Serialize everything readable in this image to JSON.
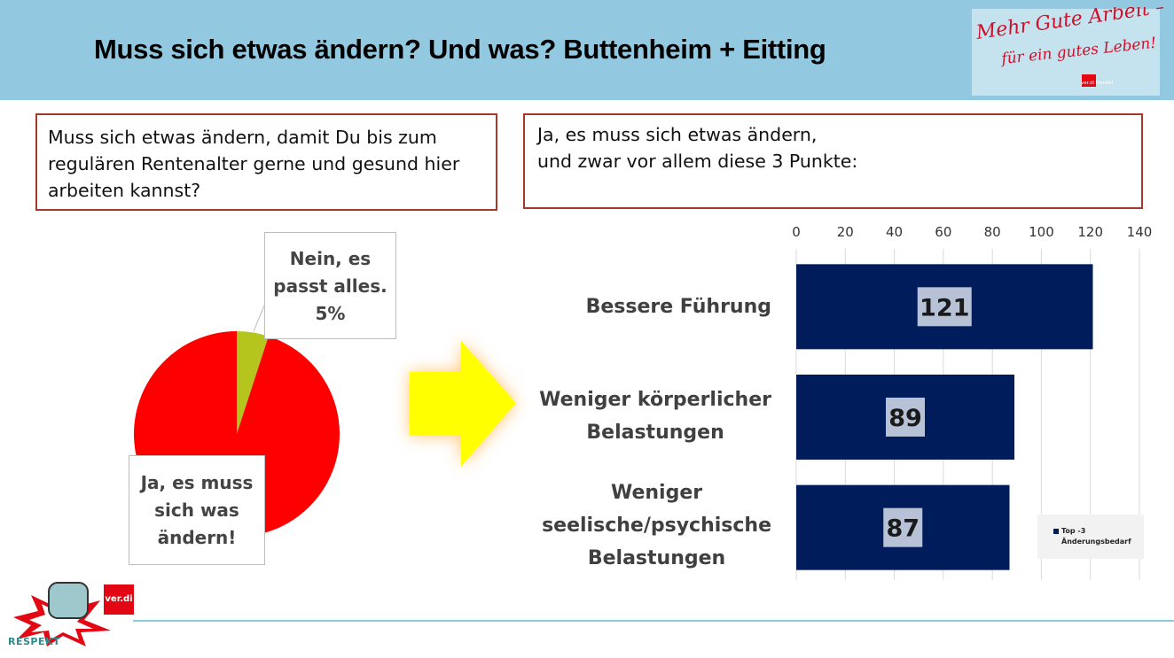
{
  "slide": {
    "title": "Muss sich etwas ändern? Und was? Buttenheim + Eitting",
    "question_lines": [
      "Muss sich etwas ändern, damit Du bis zum",
      "regulären Rentenalter gerne und gesund hier",
      "arbeiten kannst?"
    ],
    "answer_lines": [
      "Ja, es muss sich etwas ändern,",
      "und zwar vor allem diese 3 Punkte:"
    ],
    "logo_top": {
      "line1": "Mehr Gute Arbeit –",
      "line2": "für ein gutes Leben!",
      "badge": "ver.di Handel"
    },
    "logo_bottom": {
      "badge": "ver.di",
      "text": "RESPEKT"
    }
  },
  "colors": {
    "header": "#92c8e0",
    "pie_ja": "#ff0000",
    "pie_nein": "#b5c51e",
    "bar": "#001c5b",
    "arrow": "#ffff00",
    "box_border": "#a33a2a"
  },
  "chart_data": [
    {
      "type": "pie",
      "slices": [
        {
          "label_lines": [
            "Nein, es",
            "passt alles.",
            "5%"
          ],
          "value": 5
        },
        {
          "label_lines": [
            "Ja, es muss",
            "sich was",
            "ändern!"
          ],
          "value": 95
        }
      ]
    },
    {
      "type": "bar",
      "orientation": "horizontal",
      "categories": [
        [
          "Bessere Führung"
        ],
        [
          "Weniger körperlicher",
          "Belastungen"
        ],
        [
          "Weniger",
          "seelische/psychische",
          "Belastungen"
        ]
      ],
      "series": [
        {
          "name": "Top -3 Änderungsbedarf",
          "values": [
            121,
            89,
            87
          ]
        }
      ],
      "xlim": [
        0,
        140
      ],
      "xticks": [
        "0",
        "20",
        "40",
        "60",
        "80",
        "100",
        "120",
        "140"
      ],
      "axis_position": "top",
      "grid": true,
      "legend": "bottom-right"
    }
  ]
}
